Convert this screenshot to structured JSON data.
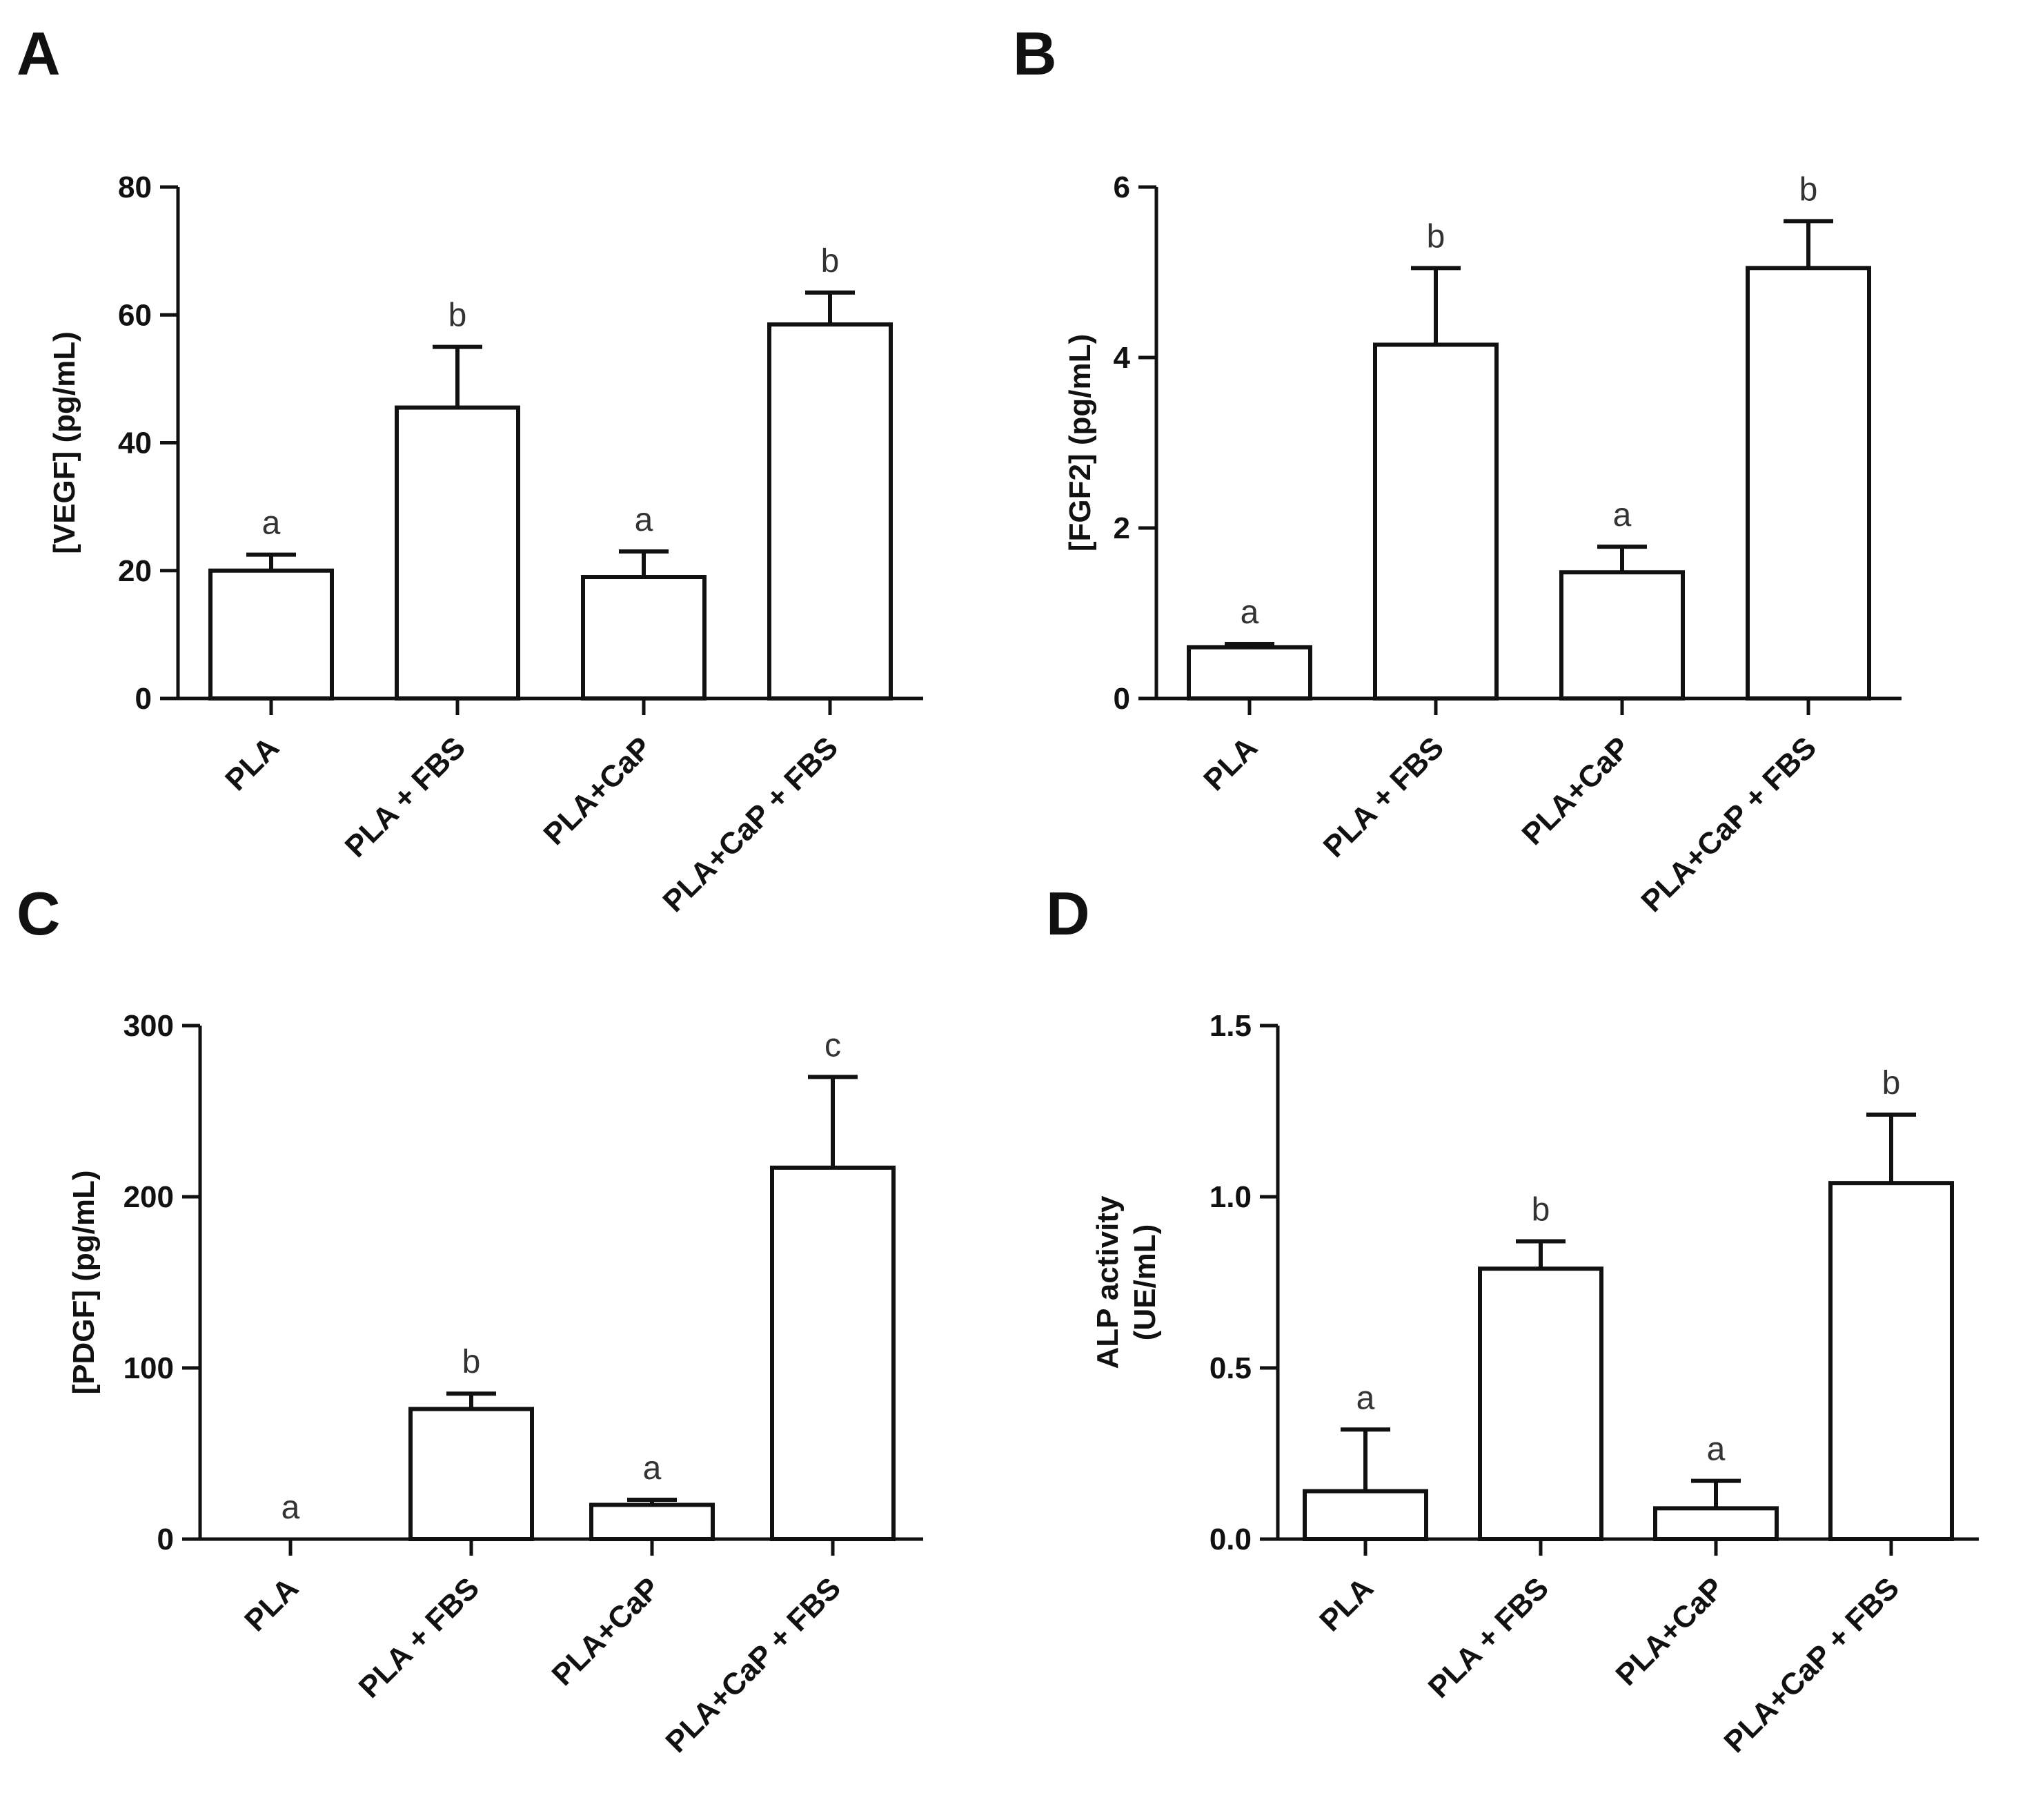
{
  "chart_data": [
    {
      "panel": "A",
      "type": "bar",
      "ylabel": "[VEGF] (pg/mL)",
      "ylim": [
        0,
        80
      ],
      "yticks": [
        0,
        20,
        40,
        60,
        80
      ],
      "categories": [
        "PLA",
        "PLA + FBS",
        "PLA+CaP",
        "PLA+CaP + FBS"
      ],
      "values": [
        20,
        45.5,
        19,
        58.5
      ],
      "errors": [
        2.5,
        9.5,
        4,
        5
      ],
      "significance": [
        "a",
        "b",
        "a",
        "b"
      ]
    },
    {
      "panel": "B",
      "type": "bar",
      "ylabel": "[FGF2] (pg/mL)",
      "ylim": [
        0,
        6
      ],
      "yticks": [
        0,
        2,
        4,
        6
      ],
      "categories": [
        "PLA",
        "PLA + FBS",
        "PLA+CaP",
        "PLA+CaP + FBS"
      ],
      "values": [
        0.6,
        4.15,
        1.48,
        5.05
      ],
      "errors": [
        0.04,
        0.9,
        0.3,
        0.55
      ],
      "significance": [
        "a",
        "b",
        "a",
        "b"
      ]
    },
    {
      "panel": "C",
      "type": "bar",
      "ylabel": "[PDGF] (pg/mL)",
      "ylim": [
        0,
        300
      ],
      "yticks": [
        0,
        100,
        200,
        300
      ],
      "categories": [
        "PLA",
        "PLA + FBS",
        "PLA+CaP",
        "PLA+CaP + FBS"
      ],
      "values": [
        0,
        76,
        20,
        217
      ],
      "errors": [
        0,
        9,
        3,
        53
      ],
      "significance": [
        "a",
        "b",
        "a",
        "c"
      ]
    },
    {
      "panel": "D",
      "type": "bar",
      "ylabel": [
        "ALP activity",
        "(UE/mL)"
      ],
      "ylim": [
        0,
        1.5
      ],
      "yticks": [
        "0.0",
        "0.5",
        "1.0",
        "1.5"
      ],
      "categories": [
        "PLA",
        "PLA + FBS",
        "PLA+CaP",
        "PLA+CaP + FBS"
      ],
      "values": [
        0.14,
        0.79,
        0.09,
        1.04
      ],
      "errors": [
        0.18,
        0.08,
        0.08,
        0.2
      ],
      "significance": [
        "a",
        "b",
        "a",
        "b"
      ]
    }
  ]
}
